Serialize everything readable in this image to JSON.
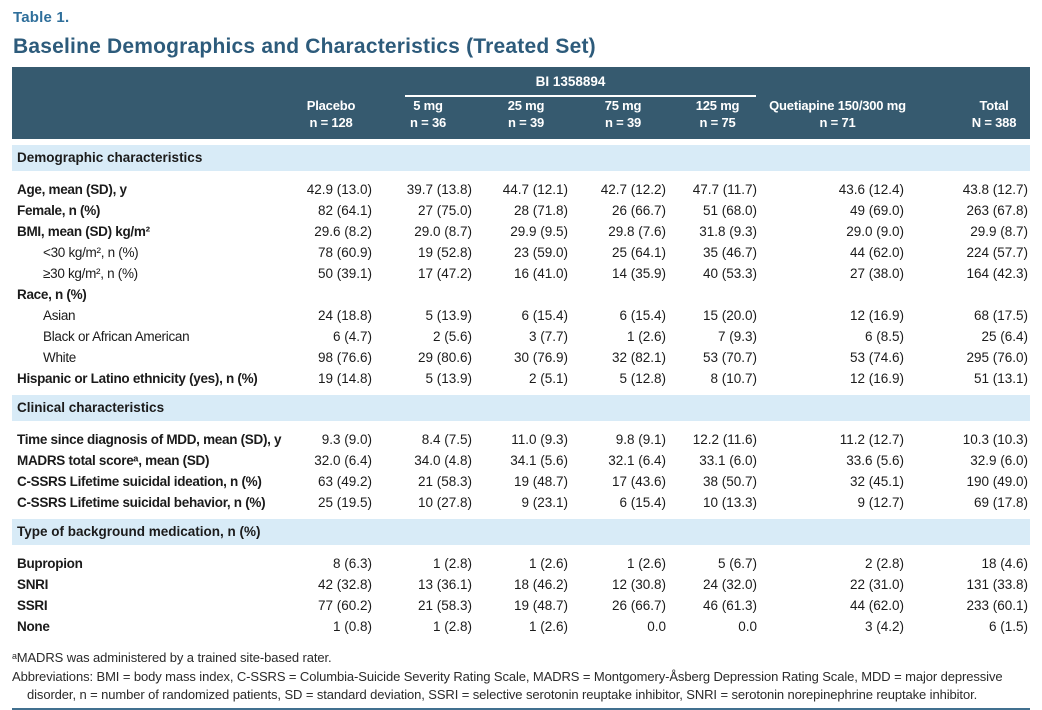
{
  "page": {
    "eyebrow": "Table 1.",
    "title": "Baseline Demographics and Characteristics (Treated Set)"
  },
  "table": {
    "group_header": "BI 1358894",
    "columns": [
      {
        "line1": "Placebo",
        "line2": "n = 128"
      },
      {
        "line1": "5 mg",
        "line2": "n = 36"
      },
      {
        "line1": "25 mg",
        "line2": "n = 39"
      },
      {
        "line1": "75 mg",
        "line2": "n = 39"
      },
      {
        "line1": "125 mg",
        "line2": "n = 75"
      },
      {
        "line1": "Quetiapine 150/300 mg",
        "line2": "n = 71"
      },
      {
        "line1": "Total",
        "line2": "N = 388"
      }
    ],
    "sections": [
      {
        "heading": "Demographic characteristics",
        "rows": [
          {
            "label": "Age, mean (SD), y",
            "bold": true,
            "indent": false,
            "values": [
              "42.9 (13.0)",
              "39.7 (13.8)",
              "44.7 (12.1)",
              "42.7 (12.2)",
              "47.7 (11.7)",
              "43.6 (12.4)",
              "43.8 (12.7)"
            ]
          },
          {
            "label": "Female, n (%)",
            "bold": true,
            "indent": false,
            "values": [
              "82 (64.1)",
              "27 (75.0)",
              "28 (71.8)",
              "26 (66.7)",
              "51 (68.0)",
              "49 (69.0)",
              "263 (67.8)"
            ]
          },
          {
            "label": "BMI, mean (SD) kg/m²",
            "bold": true,
            "indent": false,
            "values": [
              "29.6 (8.2)",
              "29.0 (8.7)",
              "29.9 (9.5)",
              "29.8 (7.6)",
              "31.8 (9.3)",
              "29.0 (9.0)",
              "29.9 (8.7)"
            ]
          },
          {
            "label": "<30 kg/m², n (%)",
            "bold": false,
            "indent": true,
            "values": [
              "78 (60.9)",
              "19 (52.8)",
              "23 (59.0)",
              "25 (64.1)",
              "35 (46.7)",
              "44 (62.0)",
              "224 (57.7)"
            ]
          },
          {
            "label": "≥30 kg/m², n (%)",
            "bold": false,
            "indent": true,
            "values": [
              "50 (39.1)",
              "17 (47.2)",
              "16 (41.0)",
              "14 (35.9)",
              "40 (53.3)",
              "27 (38.0)",
              "164 (42.3)"
            ]
          },
          {
            "label": "Race, n (%)",
            "bold": true,
            "indent": false,
            "values": [
              "",
              "",
              "",
              "",
              "",
              "",
              ""
            ]
          },
          {
            "label": "Asian",
            "bold": false,
            "indent": true,
            "values": [
              "24 (18.8)",
              "5 (13.9)",
              "6 (15.4)",
              "6 (15.4)",
              "15 (20.0)",
              "12 (16.9)",
              "68 (17.5)"
            ]
          },
          {
            "label": "Black or African American",
            "bold": false,
            "indent": true,
            "values": [
              "6 (4.7)",
              "2 (5.6)",
              "3 (7.7)",
              "1 (2.6)",
              "7 (9.3)",
              "6 (8.5)",
              "25 (6.4)"
            ]
          },
          {
            "label": "White",
            "bold": false,
            "indent": true,
            "values": [
              "98 (76.6)",
              "29 (80.6)",
              "30 (76.9)",
              "32 (82.1)",
              "53 (70.7)",
              "53 (74.6)",
              "295 (76.0)"
            ]
          },
          {
            "label": "Hispanic or Latino ethnicity (yes), n (%)",
            "bold": true,
            "indent": false,
            "values": [
              "19 (14.8)",
              "5 (13.9)",
              "2 (5.1)",
              "5 (12.8)",
              "8 (10.7)",
              "12 (16.9)",
              "51 (13.1)"
            ]
          }
        ]
      },
      {
        "heading": "Clinical characteristics",
        "rows": [
          {
            "label": "Time since diagnosis of MDD, mean (SD), y",
            "bold": true,
            "indent": false,
            "values": [
              "9.3 (9.0)",
              "8.4 (7.5)",
              "11.0 (9.3)",
              "9.8 (9.1)",
              "12.2 (11.6)",
              "11.2 (12.7)",
              "10.3 (10.3)"
            ]
          },
          {
            "label": "MADRS total scoreᵃ, mean (SD)",
            "bold": true,
            "indent": false,
            "values": [
              "32.0 (6.4)",
              "34.0 (4.8)",
              "34.1 (5.6)",
              "32.1 (6.4)",
              "33.1 (6.0)",
              "33.6 (5.6)",
              "32.9 (6.0)"
            ]
          },
          {
            "label": "C-SSRS Lifetime suicidal ideation, n (%)",
            "bold": true,
            "indent": false,
            "values": [
              "63 (49.2)",
              "21 (58.3)",
              "19 (48.7)",
              "17 (43.6)",
              "38 (50.7)",
              "32 (45.1)",
              "190 (49.0)"
            ]
          },
          {
            "label": "C-SSRS Lifetime suicidal behavior, n (%)",
            "bold": true,
            "indent": false,
            "values": [
              "25 (19.5)",
              "10 (27.8)",
              "9 (23.1)",
              "6 (15.4)",
              "10 (13.3)",
              "9 (12.7)",
              "69 (17.8)"
            ]
          }
        ]
      },
      {
        "heading": "Type of background medication, n (%)",
        "rows": [
          {
            "label": "Bupropion",
            "bold": true,
            "indent": false,
            "values": [
              "8 (6.3)",
              "1 (2.8)",
              "1 (2.6)",
              "1 (2.6)",
              "5 (6.7)",
              "2 (2.8)",
              "18 (4.6)"
            ]
          },
          {
            "label": "SNRI",
            "bold": true,
            "indent": false,
            "values": [
              "42 (32.8)",
              "13 (36.1)",
              "18 (46.2)",
              "12 (30.8)",
              "24 (32.0)",
              "22 (31.0)",
              "131 (33.8)"
            ]
          },
          {
            "label": "SSRI",
            "bold": true,
            "indent": false,
            "values": [
              "77 (60.2)",
              "21 (58.3)",
              "19 (48.7)",
              "26 (66.7)",
              "46 (61.3)",
              "44 (62.0)",
              "233 (60.1)"
            ]
          },
          {
            "label": "None",
            "bold": true,
            "indent": false,
            "values": [
              "1 (0.8)",
              "1 (2.8)",
              "1 (2.6)",
              "0.0",
              "0.0",
              "3 (4.2)",
              "6 (1.5)"
            ]
          }
        ]
      }
    ]
  },
  "footnotes": {
    "note_a": "ᵃMADRS was administered by a trained site-based rater.",
    "abbreviations": "Abbreviations: BMI = body mass index, C-SSRS = Columbia-Suicide Severity Rating Scale, MADRS = Montgomery-Åsberg Depression Rating Scale, MDD = major depressive disorder, n = number of randomized patients, SD = standard deviation, SSRI = selective serotonin reuptake inhibitor, SNRI = serotonin norepinephrine reuptake inhibitor."
  },
  "colors": {
    "header_bg": "#365a6f",
    "section_bg": "#d8ebf7",
    "eyebrow_color": "#2f6f9b",
    "title_color": "#2d5b7b",
    "rule_color": "#41708f"
  }
}
